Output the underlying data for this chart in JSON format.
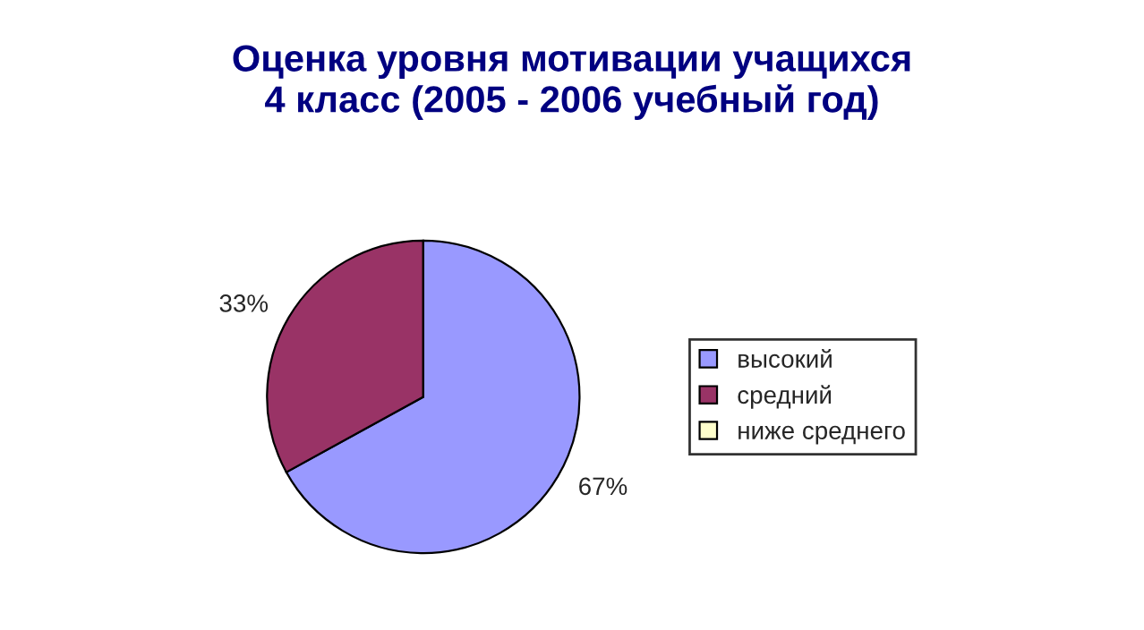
{
  "chart_data": {
    "type": "pie",
    "title": "Оценка уровня мотивации учащихся\n4 класс (2005 - 2006 учебный год)",
    "categories": [
      "высокий",
      "средний",
      "ниже среднего"
    ],
    "values": [
      67,
      33,
      0
    ],
    "colors": [
      "#9999ff",
      "#993366",
      "#ffffcc"
    ],
    "value_labels": [
      "67%",
      "33%",
      null
    ],
    "legend": "right"
  }
}
